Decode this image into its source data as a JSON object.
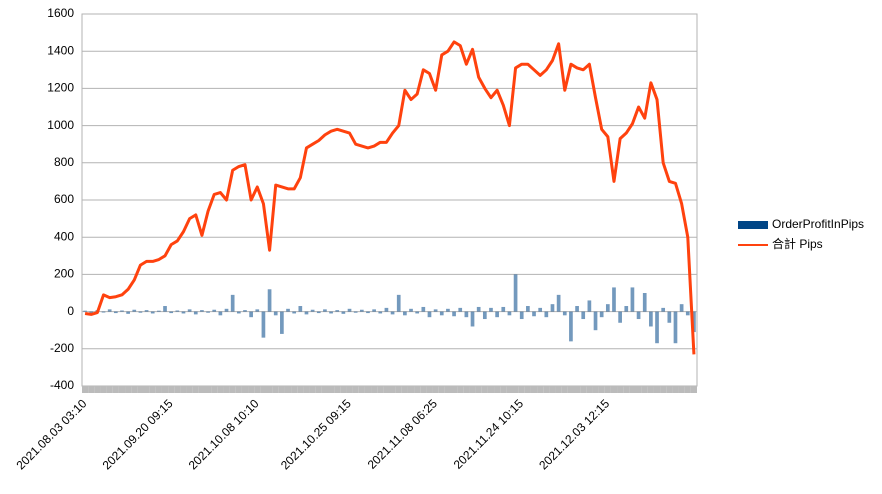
{
  "chart_data": {
    "type": "bar-line",
    "categories": [
      "2021.08.03 03:10",
      null,
      null,
      null,
      null,
      null,
      null,
      null,
      null,
      null,
      null,
      null,
      null,
      null,
      "2021.09.20 09:15",
      null,
      null,
      null,
      null,
      null,
      null,
      null,
      null,
      null,
      null,
      null,
      null,
      null,
      "2021.10.08 10:10",
      null,
      null,
      null,
      null,
      null,
      null,
      null,
      null,
      null,
      null,
      null,
      null,
      null,
      null,
      "2021.10.25 09:15",
      null,
      null,
      null,
      null,
      null,
      null,
      null,
      null,
      null,
      null,
      null,
      null,
      null,
      "2021.11.08 06:25",
      null,
      null,
      null,
      null,
      null,
      null,
      null,
      null,
      null,
      null,
      null,
      null,
      null,
      "2021.11.24 10:15",
      null,
      null,
      null,
      null,
      null,
      null,
      null,
      null,
      null,
      null,
      null,
      null,
      null,
      "2021.12.03 12:15",
      null,
      null,
      null,
      null,
      null,
      null,
      null,
      null,
      null,
      null,
      null,
      null,
      null,
      null
    ],
    "series": [
      {
        "name": "OrderProfitInPips",
        "color": "#004586",
        "mark": "bar",
        "values": [
          5,
          -10,
          8,
          -5,
          12,
          -8,
          6,
          -12,
          10,
          -6,
          8,
          -10,
          5,
          30,
          -8,
          6,
          -10,
          12,
          -15,
          8,
          -6,
          10,
          -20,
          15,
          90,
          -10,
          8,
          -30,
          12,
          -140,
          120,
          -20,
          -120,
          15,
          -10,
          30,
          -15,
          10,
          -8,
          12,
          -10,
          8,
          -12,
          15,
          -6,
          10,
          -8,
          12,
          -10,
          20,
          -15,
          90,
          -20,
          15,
          -10,
          25,
          -30,
          12,
          -20,
          15,
          -25,
          20,
          -30,
          -80,
          25,
          -40,
          20,
          -30,
          25,
          -20,
          200,
          -40,
          30,
          -25,
          20,
          -30,
          40,
          90,
          -20,
          -160,
          30,
          -40,
          60,
          -100,
          -30,
          40,
          130,
          -60,
          30,
          130,
          -40,
          100,
          -80,
          -170,
          20,
          -60,
          -170,
          40,
          -20,
          -110
        ]
      },
      {
        "name": "合計 Pips",
        "color": "#ff420e",
        "mark": "line",
        "values": [
          -10,
          -15,
          -5,
          90,
          75,
          80,
          90,
          120,
          170,
          250,
          270,
          270,
          280,
          300,
          360,
          380,
          430,
          500,
          520,
          410,
          540,
          630,
          640,
          600,
          760,
          780,
          790,
          600,
          670,
          580,
          330,
          680,
          670,
          660,
          660,
          720,
          880,
          900,
          920,
          950,
          970,
          980,
          970,
          960,
          900,
          890,
          880,
          890,
          910,
          910,
          960,
          1000,
          1190,
          1140,
          1170,
          1300,
          1280,
          1190,
          1380,
          1400,
          1450,
          1430,
          1330,
          1410,
          1260,
          1200,
          1150,
          1190,
          1110,
          1000,
          1310,
          1330,
          1330,
          1300,
          1270,
          1300,
          1350,
          1440,
          1190,
          1330,
          1310,
          1300,
          1330,
          1150,
          980,
          940,
          700,
          930,
          960,
          1010,
          1100,
          1040,
          1230,
          1140,
          800,
          700,
          690,
          580,
          400,
          -230
        ]
      }
    ],
    "ylim": [
      -400,
      1600
    ],
    "yticks": [
      -400,
      -200,
      0,
      200,
      400,
      600,
      800,
      1000,
      1200,
      1400,
      1600
    ],
    "grid": true,
    "legend": "right"
  }
}
